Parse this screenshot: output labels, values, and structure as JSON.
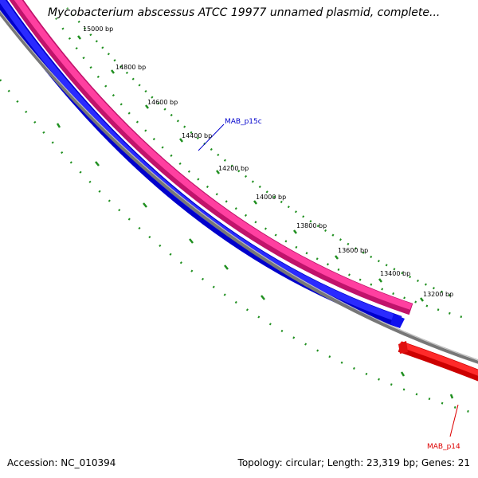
{
  "title": "Mycobacterium abscessus ATCC 19977 unnamed plasmid, complete...",
  "footer": {
    "accession": "Accession: NC_010394",
    "summary": "Topology: circular; Length: 23,319 bp; Genes: 21"
  },
  "scale_labels": [
    "15000 bp",
    "14800 bp",
    "14600 bp",
    "14400 bp",
    "14200 bp",
    "14000 bp",
    "13800 bp",
    "13600 bp",
    "13400 bp",
    "13200 bp"
  ],
  "genes": [
    {
      "name": "MAB_p15c",
      "color": "#0000cc"
    },
    {
      "name": "MAB_p14",
      "color": "#dd0000"
    }
  ],
  "colors": {
    "forward_feature": "#ff2d95",
    "reverse_feature": "#0000ff",
    "backbone": "#808080",
    "ticks": "#1f8f1f",
    "gene_red": "#ff1a1a"
  }
}
